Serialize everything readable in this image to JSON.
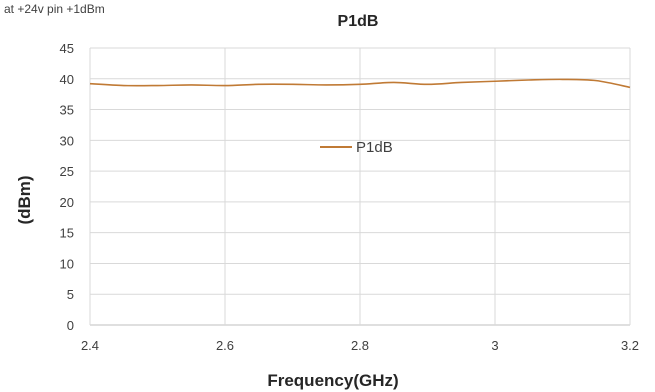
{
  "note": "at +24v pin +1dBm",
  "colors": {
    "series": "#C07A35",
    "grid": "#D9D9D9",
    "axis": "#BFBFBF"
  },
  "chart_data": {
    "type": "line",
    "title": "P1dB",
    "xlabel": "Frequency(GHz)",
    "ylabel": "(dBm)",
    "xlim": [
      2.4,
      3.2
    ],
    "ylim": [
      0,
      45
    ],
    "xticks": [
      "2.4",
      "2.6",
      "2.8",
      "3",
      "3.2"
    ],
    "yticks": [
      "0",
      "5",
      "10",
      "15",
      "20",
      "25",
      "30",
      "35",
      "40",
      "45"
    ],
    "grid": true,
    "legend": "center",
    "series": [
      {
        "name": "P1dB",
        "x": [
          2.4,
          2.45,
          2.5,
          2.55,
          2.6,
          2.65,
          2.7,
          2.75,
          2.8,
          2.85,
          2.9,
          2.95,
          3.0,
          3.05,
          3.1,
          3.15,
          3.2
        ],
        "y": [
          39.2,
          38.9,
          38.9,
          39.0,
          38.9,
          39.1,
          39.1,
          39.0,
          39.1,
          39.4,
          39.1,
          39.4,
          39.6,
          39.8,
          39.9,
          39.7,
          38.6
        ]
      }
    ]
  }
}
